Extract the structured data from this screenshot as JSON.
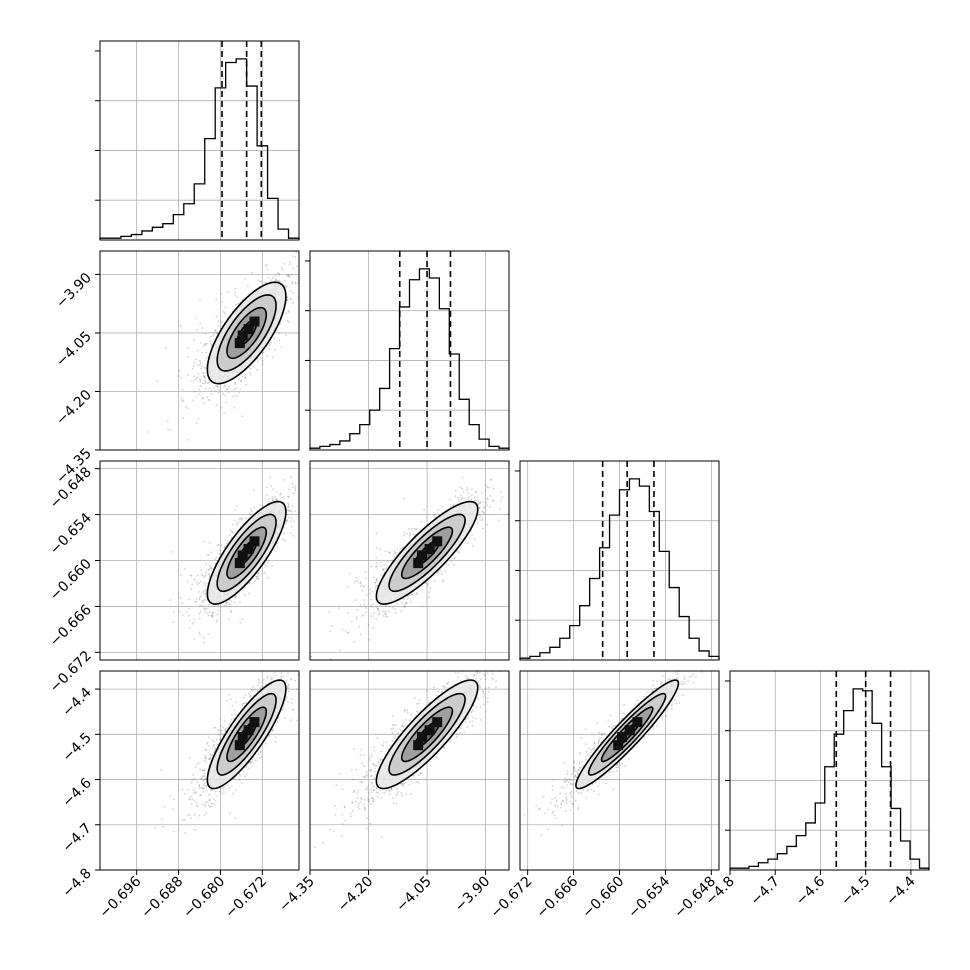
{
  "chart_data": {
    "type": "corner",
    "grid": true,
    "params": [
      {
        "index": 0,
        "range": [
          -0.703,
          -0.665
        ],
        "median": -0.675,
        "q16": -0.6797,
        "q84": -0.6722,
        "hist_counts": [
          1,
          1,
          2,
          3,
          5,
          7,
          9,
          14,
          20,
          31,
          56,
          84,
          98,
          100,
          85,
          52,
          23,
          6,
          1
        ],
        "ticks": [
          -0.696,
          -0.688,
          -0.68,
          -0.672
        ],
        "tick_labels": [
          "−0.696",
          "−0.688",
          "−0.680",
          "−0.672"
        ]
      },
      {
        "index": 1,
        "range": [
          -4.35,
          -3.84
        ],
        "median": -4.05,
        "q16": -4.12,
        "q84": -3.99,
        "hist_counts": [
          1,
          2,
          3,
          5,
          9,
          14,
          22,
          34,
          56,
          79,
          94,
          100,
          95,
          78,
          53,
          28,
          14,
          6,
          2,
          1
        ],
        "ticks": [
          -4.35,
          -4.2,
          -4.05,
          -3.9
        ],
        "tick_labels": [
          "−4.35",
          "−4.20",
          "−4.05",
          "−3.90"
        ]
      },
      {
        "index": 2,
        "range": [
          -0.673,
          -0.647
        ],
        "median": -0.659,
        "q16": -0.6622,
        "q84": -0.6555,
        "hist_counts": [
          1,
          2,
          4,
          7,
          12,
          19,
          30,
          45,
          62,
          80,
          94,
          100,
          96,
          82,
          60,
          40,
          24,
          12,
          5,
          2
        ],
        "ticks": [
          -0.672,
          -0.666,
          -0.66,
          -0.654,
          -0.648
        ],
        "tick_labels": [
          "−0.672",
          "−0.666",
          "−0.660",
          "−0.654",
          "−0.648"
        ]
      },
      {
        "index": 3,
        "range": [
          -4.8,
          -4.36
        ],
        "median": -4.5,
        "q16": -4.565,
        "q84": -4.445,
        "hist_counts": [
          1,
          1,
          2,
          4,
          6,
          9,
          13,
          19,
          26,
          37,
          57,
          75,
          88,
          100,
          99,
          81,
          57,
          34,
          16,
          6,
          1
        ],
        "ticks": [
          -4.8,
          -4.7,
          -4.6,
          -4.5,
          -4.4
        ],
        "tick_labels": [
          "−4.8",
          "−4.7",
          "−4.6",
          "−4.5",
          "−4.4"
        ]
      }
    ],
    "pairs": [
      {
        "row": 1,
        "col": 0,
        "corr": 0.72
      },
      {
        "row": 2,
        "col": 0,
        "corr": 0.8
      },
      {
        "row": 2,
        "col": 1,
        "corr": 0.85
      },
      {
        "row": 3,
        "col": 0,
        "corr": 0.84
      },
      {
        "row": 3,
        "col": 1,
        "corr": 0.86
      },
      {
        "row": 3,
        "col": 2,
        "corr": 0.94
      }
    ],
    "contour_levels_sigma": [
      0.5,
      1.0,
      1.5,
      2.0
    ]
  }
}
